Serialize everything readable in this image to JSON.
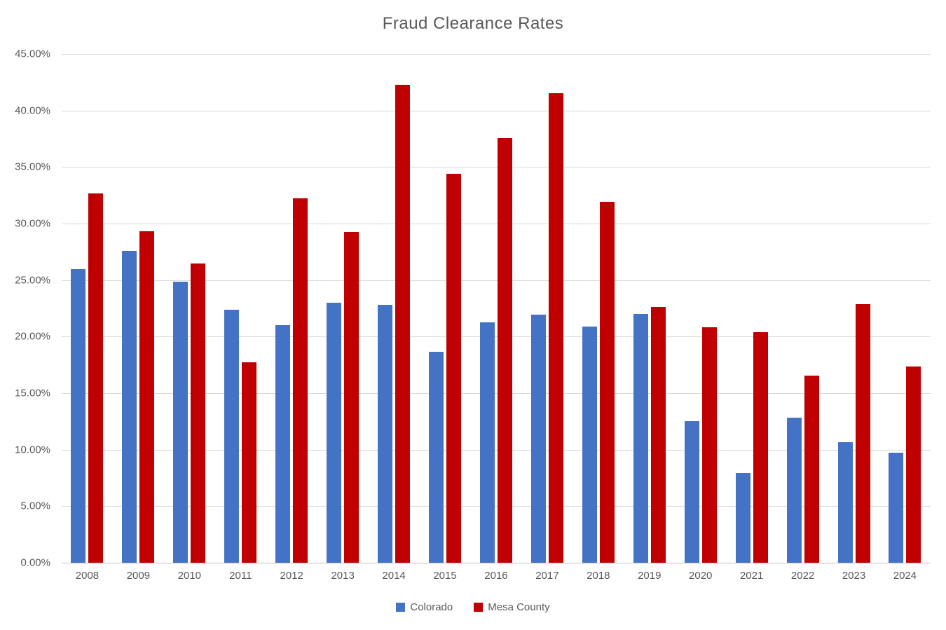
{
  "title": "Fraud Clearance Rates",
  "colors": {
    "colorado": "#4472C4",
    "mesa_county": "#C00000",
    "title_text": "#595959",
    "axis_text": "#595959",
    "gridline": "#D9D9D9"
  },
  "chart_data": {
    "type": "bar",
    "title": "Fraud Clearance Rates",
    "categories": [
      "2008",
      "2009",
      "2010",
      "2011",
      "2012",
      "2013",
      "2014",
      "2015",
      "2016",
      "2017",
      "2018",
      "2019",
      "2020",
      "2021",
      "2022",
      "2023",
      "2024"
    ],
    "series": [
      {
        "name": "Colorado",
        "color": "#4472C4",
        "values": [
          25.95,
          27.6,
          24.85,
          22.35,
          21.0,
          23.0,
          22.8,
          18.65,
          21.25,
          21.95,
          20.9,
          22.0,
          12.55,
          7.95,
          12.85,
          10.65,
          9.75
        ]
      },
      {
        "name": "Mesa County",
        "color": "#C00000",
        "values": [
          32.65,
          29.35,
          26.45,
          17.75,
          32.25,
          29.25,
          42.3,
          34.4,
          37.55,
          41.5,
          31.9,
          22.6,
          20.8,
          20.4,
          16.55,
          22.9,
          17.35
        ]
      }
    ],
    "xlabel": "",
    "ylabel": "",
    "ylim": [
      0,
      45
    ],
    "grid": true,
    "legend_position": "bottom",
    "y_axis": {
      "values": [
        45,
        40,
        35,
        30,
        25,
        20,
        15,
        10,
        5,
        0
      ],
      "labels": [
        "45.00%",
        "40.00%",
        "35.00%",
        "30.00%",
        "25.00%",
        "20.00%",
        "15.00%",
        "10.00%",
        "5.00%",
        "0.00%"
      ]
    }
  },
  "legend": {
    "items": [
      {
        "label": "Colorado",
        "color": "#4472C4"
      },
      {
        "label": "Mesa County",
        "color": "#C00000"
      }
    ]
  }
}
